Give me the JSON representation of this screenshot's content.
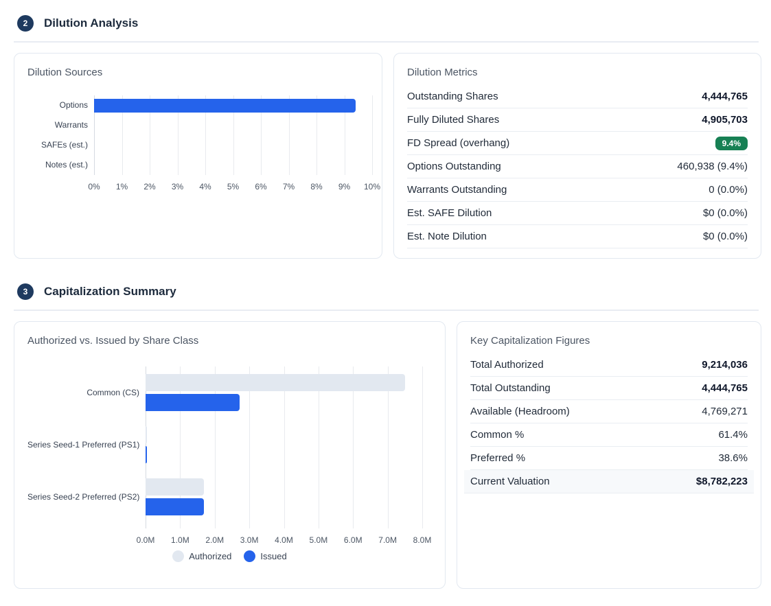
{
  "sections": [
    {
      "number": "2",
      "title": "Dilution Analysis"
    },
    {
      "number": "3",
      "title": "Capitalization Summary"
    }
  ],
  "chart_data": [
    {
      "type": "bar",
      "orientation": "horizontal",
      "title": "Dilution Sources",
      "categories": [
        "Options",
        "Warrants",
        "SAFEs (est.)",
        "Notes (est.)"
      ],
      "values": [
        9.4,
        0,
        0,
        0
      ],
      "value_unit": "percent",
      "xlim": [
        0,
        10
      ],
      "x_ticks": [
        "0%",
        "1%",
        "2%",
        "3%",
        "4%",
        "5%",
        "6%",
        "7%",
        "8%",
        "9%",
        "10%"
      ],
      "bar_color": "#2563eb",
      "grid": true,
      "legend": "none"
    },
    {
      "type": "bar",
      "orientation": "horizontal",
      "title": "Authorized vs. Issued by Share Class",
      "categories": [
        "Common (CS)",
        "Series Seed-1 Preferred (PS1)",
        "Series Seed-2 Preferred (PS2)"
      ],
      "series": [
        {
          "name": "Authorized",
          "values": [
            7500000,
            26000,
            1690000
          ],
          "color": "#e2e8f0"
        },
        {
          "name": "Issued",
          "values": [
            2729000,
            26000,
            1690000
          ],
          "color": "#2563eb"
        }
      ],
      "xlim": [
        0,
        8000000
      ],
      "x_ticks": [
        "0.0M",
        "1.0M",
        "2.0M",
        "3.0M",
        "4.0M",
        "5.0M",
        "6.0M",
        "7.0M",
        "8.0M"
      ],
      "grid": true,
      "legend_position": "bottom"
    }
  ],
  "dilution_metrics": {
    "title": "Dilution Metrics",
    "rows": [
      {
        "label": "Outstanding Shares",
        "value": "4,444,765",
        "bold": true
      },
      {
        "label": "Fully Diluted Shares",
        "value": "4,905,703",
        "bold": true
      },
      {
        "label": "FD Spread (overhang)",
        "value": "9.4%",
        "badge": true
      },
      {
        "label": "Options Outstanding",
        "value": "460,938 (9.4%)"
      },
      {
        "label": "Warrants Outstanding",
        "value": "0 (0.0%)"
      },
      {
        "label": "Est. SAFE Dilution",
        "value": "$0 (0.0%)"
      },
      {
        "label": "Est. Note Dilution",
        "value": "$0 (0.0%)"
      }
    ]
  },
  "key_figures": {
    "title": "Key Capitalization Figures",
    "rows": [
      {
        "label": "Total Authorized",
        "value": "9,214,036",
        "bold": true
      },
      {
        "label": "Total Outstanding",
        "value": "4,444,765",
        "bold": true
      },
      {
        "label": "Available (Headroom)",
        "value": "4,769,271"
      },
      {
        "label": "Common %",
        "value": "61.4%"
      },
      {
        "label": "Preferred %",
        "value": "38.6%"
      },
      {
        "label": "Current Valuation",
        "value": "$8,782,223",
        "bold": true,
        "highlight": true
      }
    ]
  },
  "colors": {
    "accent_blue": "#2563eb",
    "authorized_gray": "#e2e8f0",
    "badge_green": "#178054",
    "section_navy": "#1e3a5f"
  }
}
